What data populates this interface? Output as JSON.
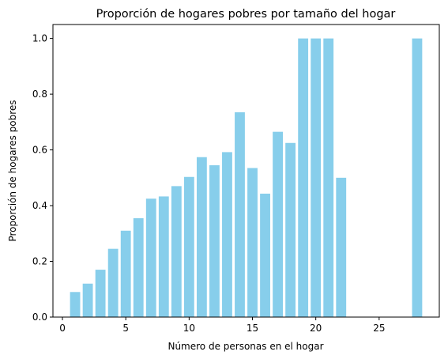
{
  "chart_data": {
    "type": "bar",
    "title": "Proporción de hogares pobres por tamaño del hogar",
    "xlabel": "Número de personas en el hogar",
    "ylabel": "Proporción de hogares pobres",
    "bar_color": "#87ceeb",
    "xlim": [
      -0.75,
      29.75
    ],
    "ylim": [
      0,
      1.05
    ],
    "xticks": [
      0,
      5,
      10,
      15,
      20,
      25
    ],
    "yticks": [
      0.0,
      0.2,
      0.4,
      0.6,
      0.8,
      1.0
    ],
    "xtick_labels": [
      "0",
      "5",
      "10",
      "15",
      "20",
      "25"
    ],
    "ytick_labels": [
      "0.0",
      "0.2",
      "0.4",
      "0.6",
      "0.8",
      "1.0"
    ],
    "grid": false,
    "x": [
      1,
      2,
      3,
      4,
      5,
      6,
      7,
      8,
      9,
      10,
      11,
      12,
      13,
      14,
      15,
      16,
      17,
      18,
      19,
      20,
      21,
      22,
      28
    ],
    "values": [
      0.09,
      0.12,
      0.17,
      0.245,
      0.31,
      0.355,
      0.425,
      0.433,
      0.47,
      0.503,
      0.574,
      0.545,
      0.592,
      0.735,
      0.535,
      0.443,
      0.665,
      0.625,
      1.0,
      1.0,
      1.0,
      0.5,
      1.0
    ]
  }
}
